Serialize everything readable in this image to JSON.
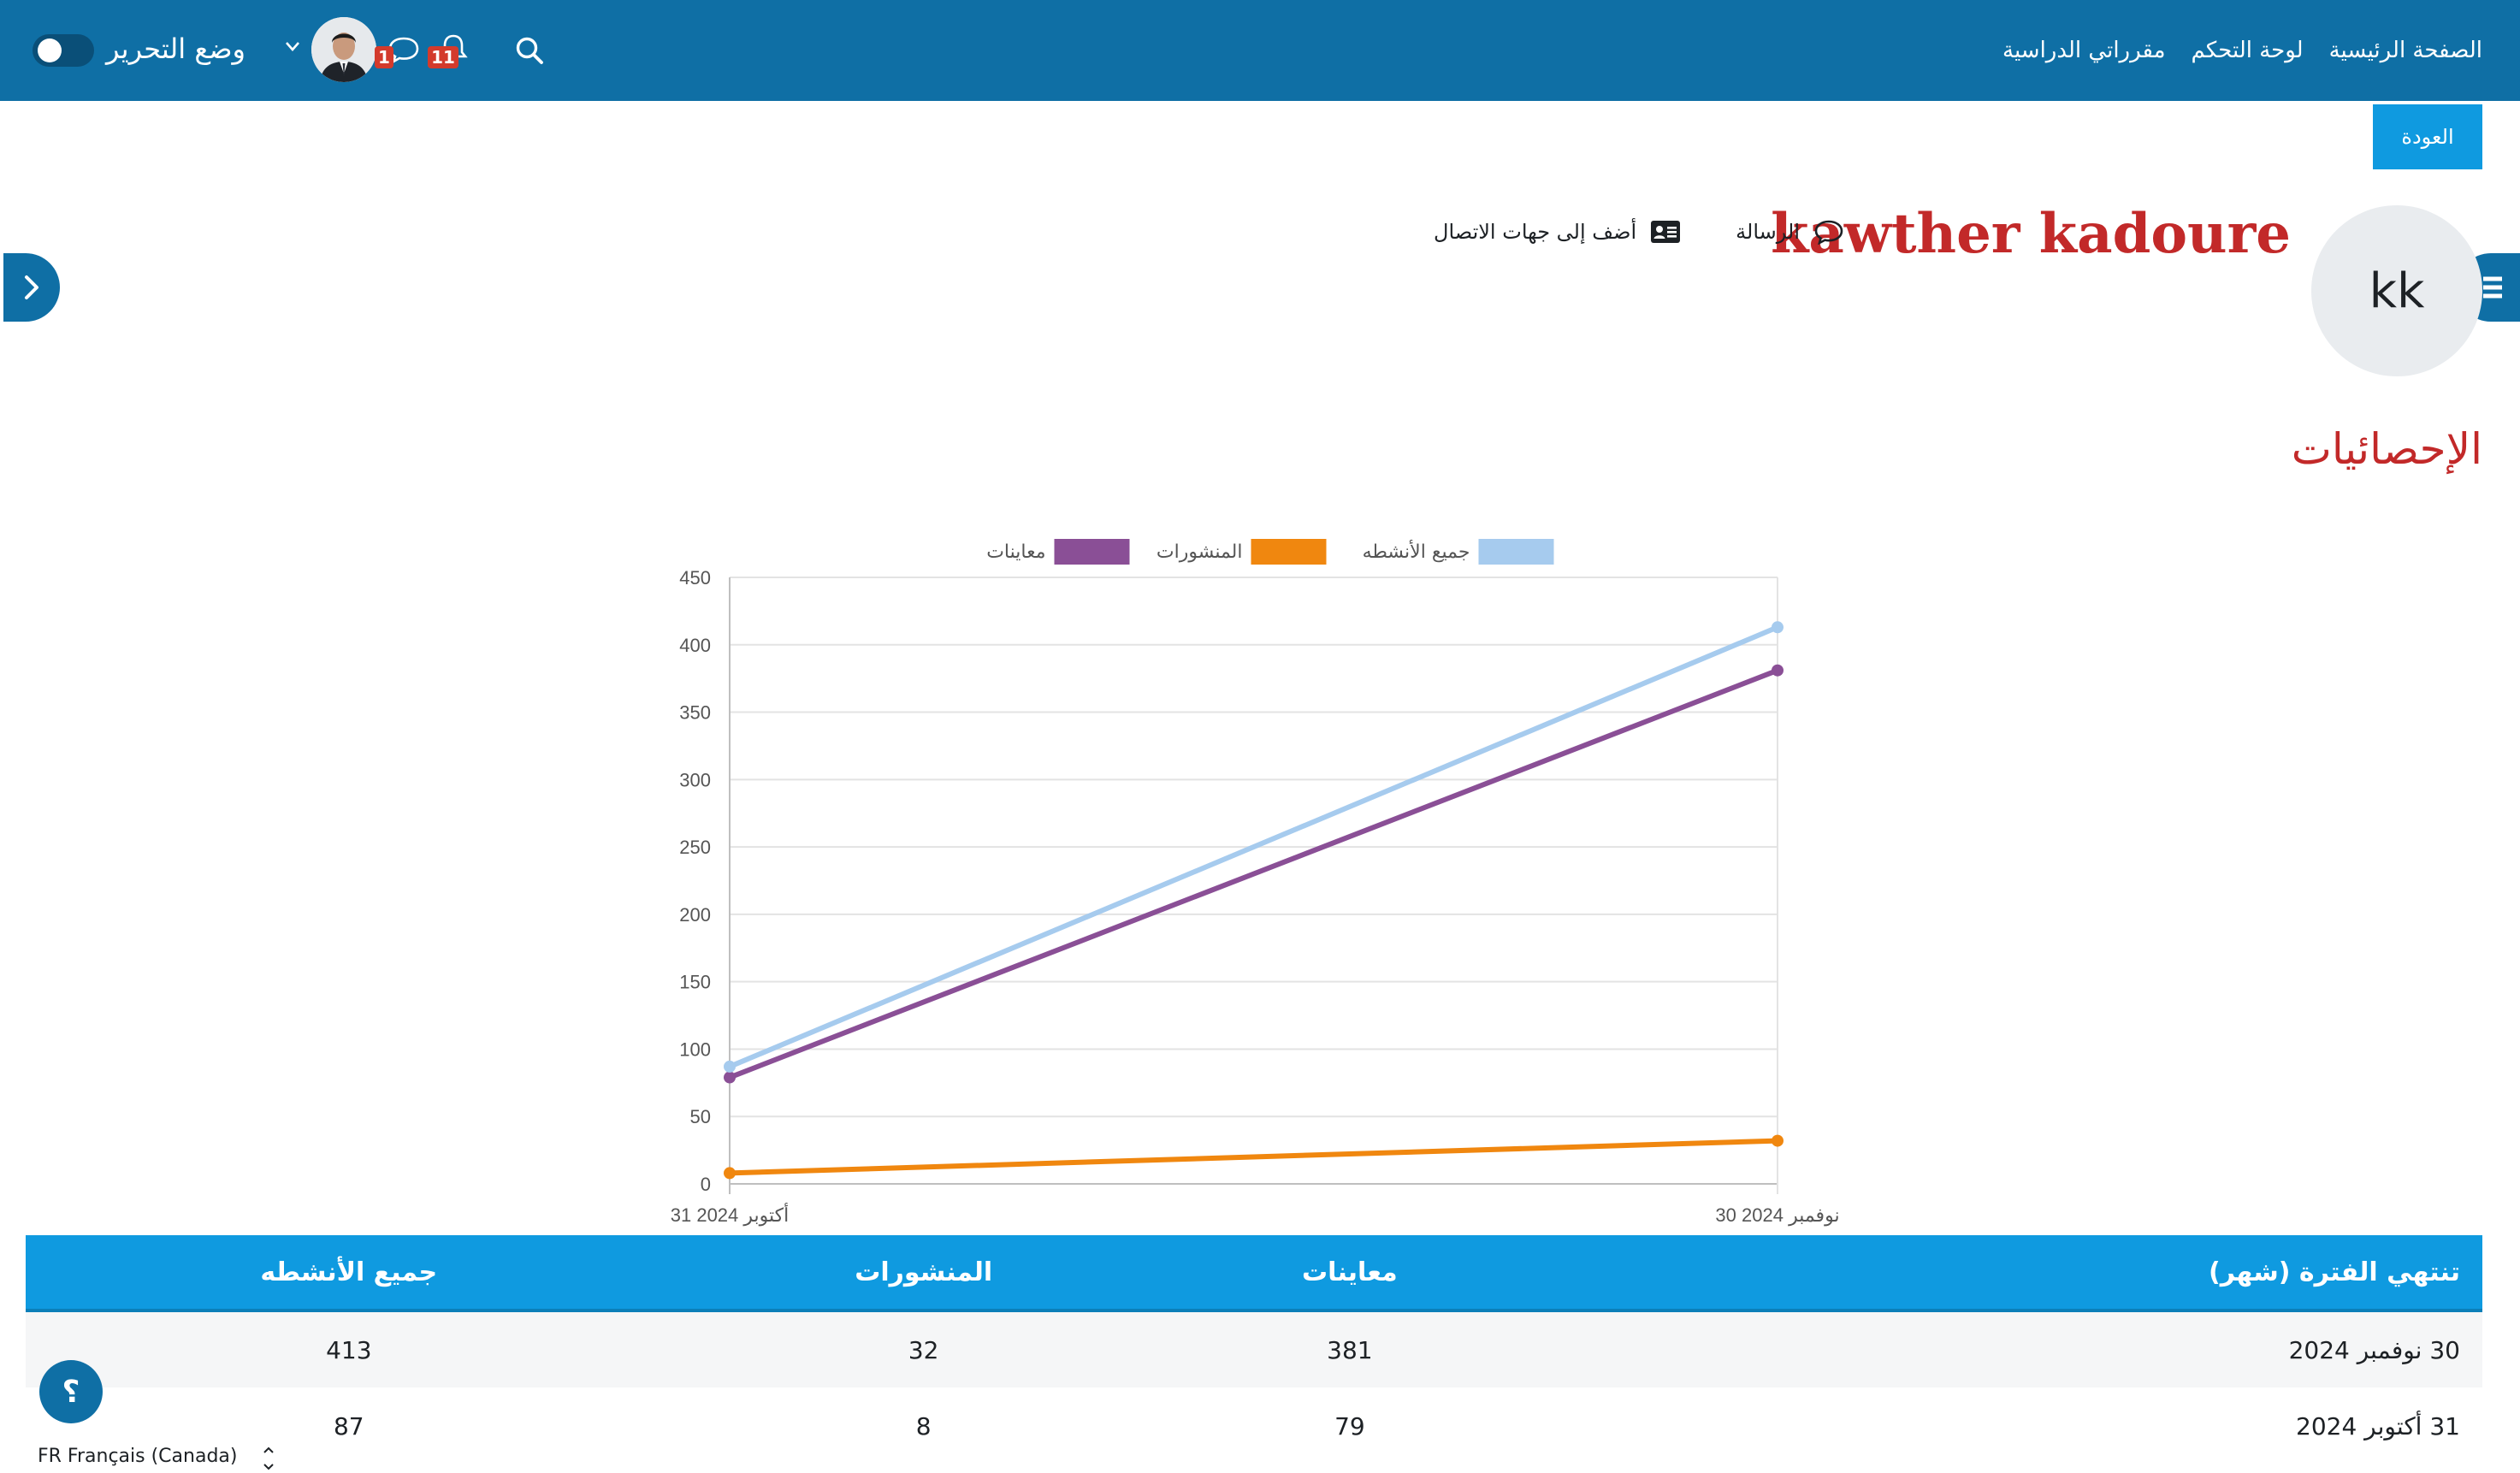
{
  "navbar": {
    "links": [
      "الصفحة الرئيسية",
      "لوحة التحكم",
      "مقرراتي الدراسية"
    ],
    "edit_mode_label": "وضع التحرير",
    "message_count": "1",
    "notification_count": "11",
    "icons": [
      "search-icon",
      "bell-icon",
      "message-icon",
      "chevron-down-icon"
    ]
  },
  "back_button": "العودة",
  "profile": {
    "initials": "kk",
    "name": "kawther kadoure",
    "message_action": "الرسالة",
    "add_contact_action": "أضف إلى جهات الاتصال"
  },
  "section_title": "الإحصائيات",
  "chart_data": {
    "type": "line",
    "categories": [
      "31 أكتوبر 2024",
      "30 نوفمبر 2024"
    ],
    "series": [
      {
        "name": "معاينات",
        "values": [
          79,
          381
        ],
        "color": "#8a4f96"
      },
      {
        "name": "المنشورات",
        "values": [
          8,
          32
        ],
        "color": "#f0870f"
      },
      {
        "name": "جميع الأنشطه",
        "values": [
          87,
          413
        ],
        "color": "#a6cbee"
      }
    ],
    "yticks": [
      0,
      50,
      100,
      150,
      200,
      250,
      300,
      350,
      400,
      450
    ],
    "ylim": [
      0,
      450
    ],
    "grid": true,
    "legend": "top-center"
  },
  "table": {
    "headers": [
      "تنتهي الفترة (شهر)",
      "معاينات",
      "المنشورات",
      "جميع الأنشطه"
    ],
    "rows": [
      [
        "30 نوفمبر 2024",
        "381",
        "32",
        "413"
      ],
      [
        "31 أكتوبر 2024",
        "79",
        "8",
        "87"
      ]
    ]
  },
  "footer": {
    "help_label": "؟",
    "language": "FR Français (Canada)"
  }
}
